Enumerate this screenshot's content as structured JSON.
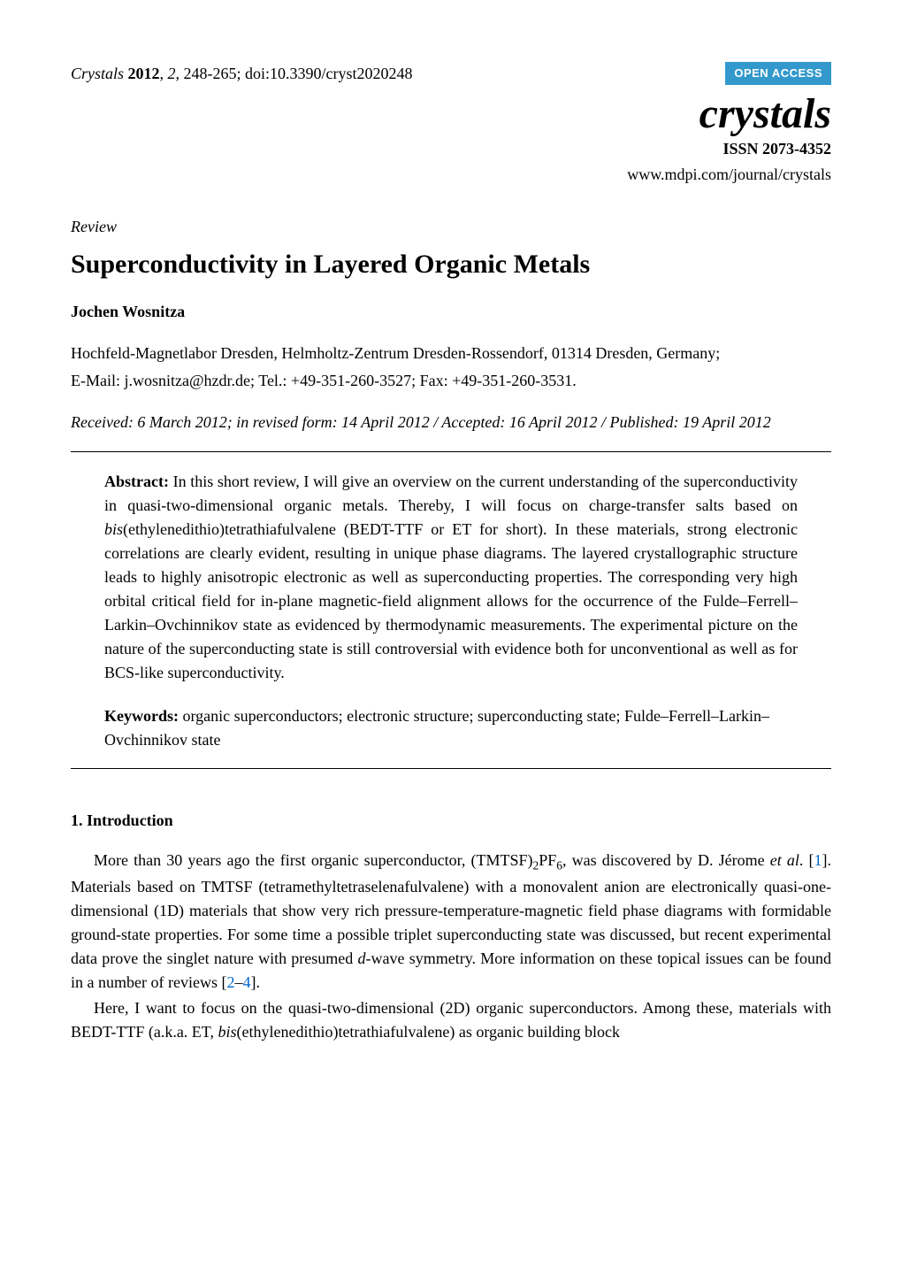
{
  "header": {
    "journal_short": "Crystals",
    "year": "2012",
    "volume": "2",
    "pages": "248-265",
    "doi": "doi:10.3390/cryst2020248",
    "open_access": "OPEN ACCESS",
    "journal_logo": "crystals",
    "issn": "ISSN 2073-4352",
    "url": "www.mdpi.com/journal/crystals"
  },
  "article": {
    "type": "Review",
    "title": "Superconductivity in Layered Organic Metals",
    "author": "Jochen Wosnitza",
    "affiliation_line1": "Hochfeld-Magnetlabor Dresden, Helmholtz-Zentrum Dresden-Rossendorf, 01314 Dresden, Germany;",
    "affiliation_line2": "E-Mail: j.wosnitza@hzdr.de; Tel.: +49-351-260-3527; Fax: +49-351-260-3531.",
    "dates": "Received: 6 March 2012; in revised form: 14 April 2012 / Accepted: 16 April 2012 / Published: 19 April 2012"
  },
  "abstract": {
    "label": "Abstract:",
    "text": "In this short review, I will give an overview on the current understanding of the superconductivity in quasi-two-dimensional organic metals. Thereby, I will focus on charge-transfer salts based on bis(ethylenedithio)tetrathiafulvalene (BEDT-TTF or ET for short). In these materials, strong electronic correlations are clearly evident, resulting in unique phase diagrams. The layered crystallographic structure leads to highly anisotropic electronic as well as superconducting properties. The corresponding very high orbital critical field for in-plane magnetic-field alignment allows for the occurrence of the Fulde–Ferrell–Larkin–Ovchinnikov state as evidenced by thermodynamic measurements. The experimental picture on the nature of the superconducting state is still controversial with evidence both for unconventional as well as for BCS-like superconductivity."
  },
  "keywords": {
    "label": "Keywords:",
    "text": "organic superconductors; electronic structure; superconducting state; Fulde–Ferrell–Larkin–Ovchinnikov state"
  },
  "section1": {
    "heading": "1. Introduction",
    "p1_part1": "More than 30 years ago the first organic superconductor, (TMTSF)",
    "p1_sub1": "2",
    "p1_part2": "PF",
    "p1_sub2": "6",
    "p1_part3": ", was discovered by D. Jérome ",
    "p1_etal": "et al",
    "p1_part4": ". [",
    "p1_ref1": "1",
    "p1_part5": "]. Materials based on TMTSF (tetramethyltetraselenafulvalene) with a monovalent anion are electronically quasi-one-dimensional (1D) materials that show very rich pressure-temperature-magnetic field phase diagrams with formidable ground-state properties. For some time a possible triplet superconducting state was discussed, but recent experimental data prove the singlet nature with presumed ",
    "p1_dwave": "d",
    "p1_part6": "-wave symmetry. More information on these topical issues can be found in a number of reviews [",
    "p1_ref2": "2",
    "p1_dash": "–",
    "p1_ref3": "4",
    "p1_part7": "].",
    "p2_part1": "Here, I want to focus on the quasi-two-dimensional (2D) organic superconductors. Among these, materials with BEDT-TTF (a.k.a. ET, ",
    "p2_bis": "bis",
    "p2_part2": "(ethylenedithio)tetrathiafulvalene) as organic building block"
  },
  "colors": {
    "open_access_bg": "#3399cc",
    "open_access_fg": "#ffffff",
    "link": "#0066cc",
    "text": "#000000",
    "background": "#ffffff"
  }
}
